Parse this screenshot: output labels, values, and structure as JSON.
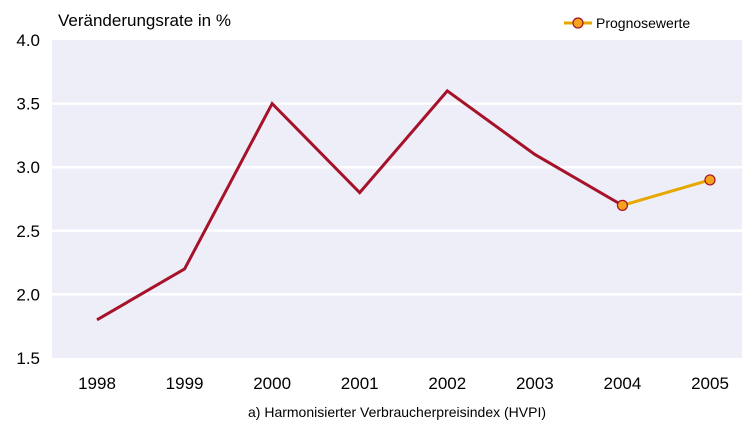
{
  "chart_data": {
    "type": "line",
    "title": "",
    "ylabel": "Veränderungsrate in %",
    "xlabel": "a) Harmonisierter Verbraucherpreisindex (HVPI)",
    "categories": [
      "1998",
      "1999",
      "2000",
      "2001",
      "2002",
      "2003",
      "2004",
      "2005"
    ],
    "ylim": [
      1.5,
      4.0
    ],
    "yticks": [
      "1.5",
      "2.0",
      "2.5",
      "3.0",
      "3.5",
      "4.0"
    ],
    "grid": true,
    "legend_position": "top-right",
    "series": [
      {
        "name": "",
        "color": "#a5122a",
        "x": [
          "1998",
          "1999",
          "2000",
          "2001",
          "2002",
          "2003",
          "2004"
        ],
        "values": [
          1.8,
          2.2,
          3.5,
          2.8,
          3.6,
          3.1,
          2.7
        ]
      },
      {
        "name": "Prognosewerte",
        "color": "#e6a800",
        "marker_fill": "#f5a31a",
        "marker_stroke": "#a5122a",
        "x": [
          "2004",
          "2005"
        ],
        "values": [
          2.7,
          2.9
        ]
      }
    ],
    "plot_background": "#eeeef8"
  }
}
